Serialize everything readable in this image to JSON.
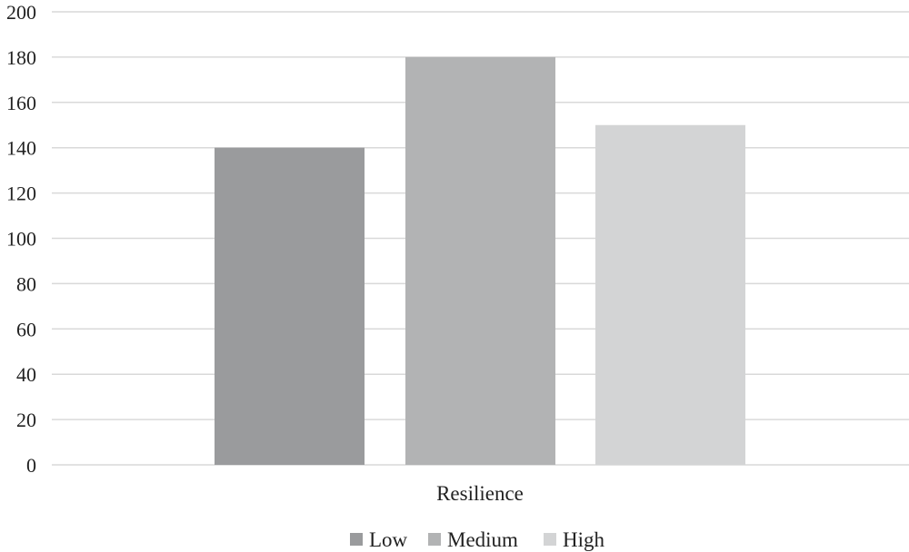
{
  "chart_data": {
    "type": "bar",
    "categories": [
      "Resilience"
    ],
    "series": [
      {
        "name": "Low",
        "values": [
          140
        ],
        "color": "#9a9b9d"
      },
      {
        "name": "Medium",
        "values": [
          180
        ],
        "color": "#b2b3b4"
      },
      {
        "name": "High",
        "values": [
          150
        ],
        "color": "#d3d4d5"
      }
    ],
    "ylim": [
      0,
      200
    ],
    "yticks": [
      0,
      20,
      40,
      60,
      80,
      100,
      120,
      140,
      160,
      180,
      200
    ],
    "grid": true,
    "legend_position": "bottom"
  }
}
